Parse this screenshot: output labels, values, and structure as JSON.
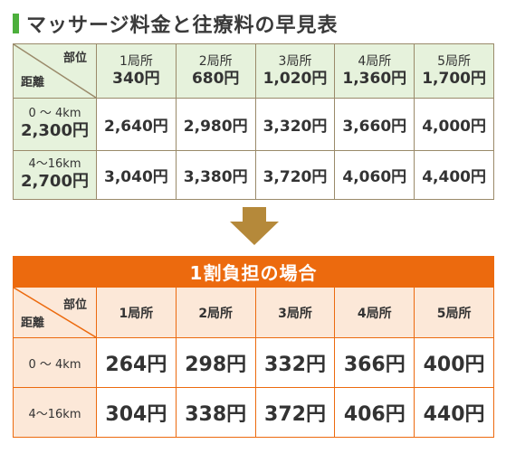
{
  "title": "マッサージ料金と往療料の早見表",
  "top_table": {
    "corner_top": "部位",
    "corner_bottom": "距離",
    "columns": [
      {
        "label": "1局所",
        "price": "340円"
      },
      {
        "label": "2局所",
        "price": "680円"
      },
      {
        "label": "3局所",
        "price": "1,020円"
      },
      {
        "label": "4局所",
        "price": "1,360円"
      },
      {
        "label": "5局所",
        "price": "1,700円"
      }
    ],
    "rows": [
      {
        "distance": "0 〜 4km",
        "fee": "2,300円",
        "values": [
          "2,640円",
          "2,980円",
          "3,320円",
          "3,660円",
          "4,000円"
        ]
      },
      {
        "distance": "4〜16km",
        "fee": "2,700円",
        "values": [
          "3,040円",
          "3,380円",
          "3,720円",
          "4,060円",
          "4,400円"
        ]
      }
    ]
  },
  "bottom_table": {
    "heading": "1割負担の場合",
    "corner_top": "部位",
    "corner_bottom": "距離",
    "columns": [
      "1局所",
      "2局所",
      "3局所",
      "4局所",
      "5局所"
    ],
    "rows": [
      {
        "distance": "0 〜 4km",
        "values": [
          "264円",
          "298円",
          "332円",
          "366円",
          "400円"
        ]
      },
      {
        "distance": "4〜16km",
        "values": [
          "304円",
          "338円",
          "372円",
          "406円",
          "440円"
        ]
      }
    ]
  },
  "colors": {
    "green_accent": "#4caf3c",
    "green_fill": "#e6f2dc",
    "orange": "#ec6a0e",
    "orange_fill": "#fce8d8",
    "arrow": "#b5893a"
  },
  "icons": {
    "arrow": "down-arrow-icon"
  }
}
